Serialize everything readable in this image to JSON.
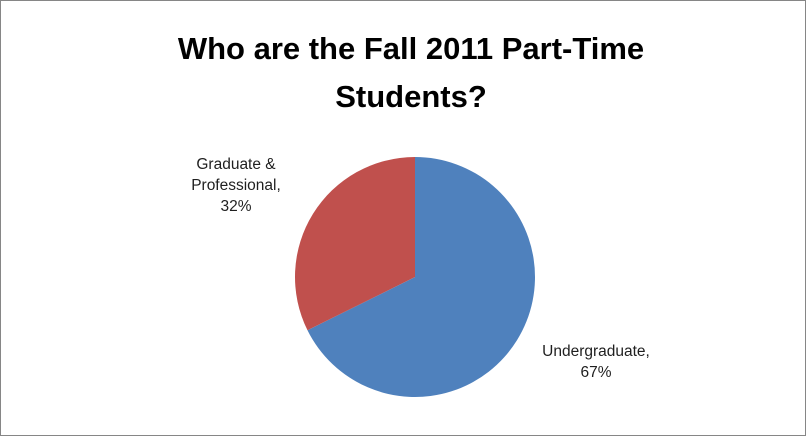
{
  "chart_data": {
    "type": "pie",
    "title": "Who are the Fall 2011 Part-Time Students?",
    "categories": [
      "Undergraduate",
      "Graduate & Professional"
    ],
    "values": [
      67,
      32
    ],
    "value_suffix": "%",
    "data_labels": [
      {
        "lines": [
          "Undergraduate,",
          "67%"
        ]
      },
      {
        "lines": [
          "Graduate &",
          "Professional,",
          "32%"
        ]
      }
    ],
    "colors": [
      "#4F81BD",
      "#C0504D"
    ],
    "legend": "none"
  }
}
